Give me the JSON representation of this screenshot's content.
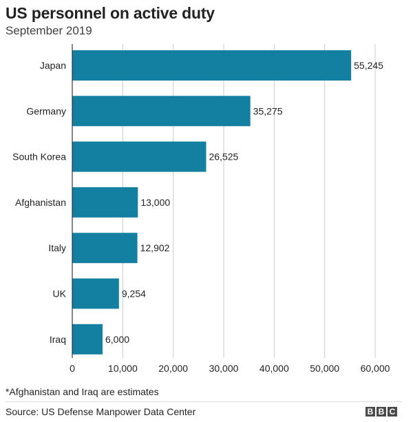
{
  "header": {
    "title": "US personnel on active duty",
    "subtitle": "September 2019"
  },
  "chart_data": {
    "type": "bar",
    "orientation": "horizontal",
    "title": "US personnel on active duty",
    "subtitle": "September 2019",
    "categories": [
      "Japan",
      "Germany",
      "South Korea",
      "Afghanistan",
      "Italy",
      "UK",
      "Iraq"
    ],
    "values": [
      55245,
      35275,
      26525,
      13000,
      12902,
      9254,
      6000
    ],
    "value_labels": [
      "55,245",
      "35,275",
      "26,525",
      "13,000",
      "12,902",
      "9,254",
      "6,000"
    ],
    "xticks": [
      0,
      10000,
      20000,
      30000,
      40000,
      50000,
      60000
    ],
    "xtick_labels": [
      "0",
      "10,000",
      "20,000",
      "30,000",
      "40,000",
      "50,000",
      "60,000"
    ],
    "xlim": [
      0,
      60000
    ],
    "xlabel": "",
    "ylabel": "",
    "grid": "vertical",
    "bar_color": "#1380a1",
    "grid_color": "#cbcbcb"
  },
  "footer": {
    "note": "*Afghanistan and Iraq are estimates",
    "source": "Source: US Defense Manpower Data Center",
    "logo_letters": [
      "B",
      "B",
      "C"
    ]
  }
}
